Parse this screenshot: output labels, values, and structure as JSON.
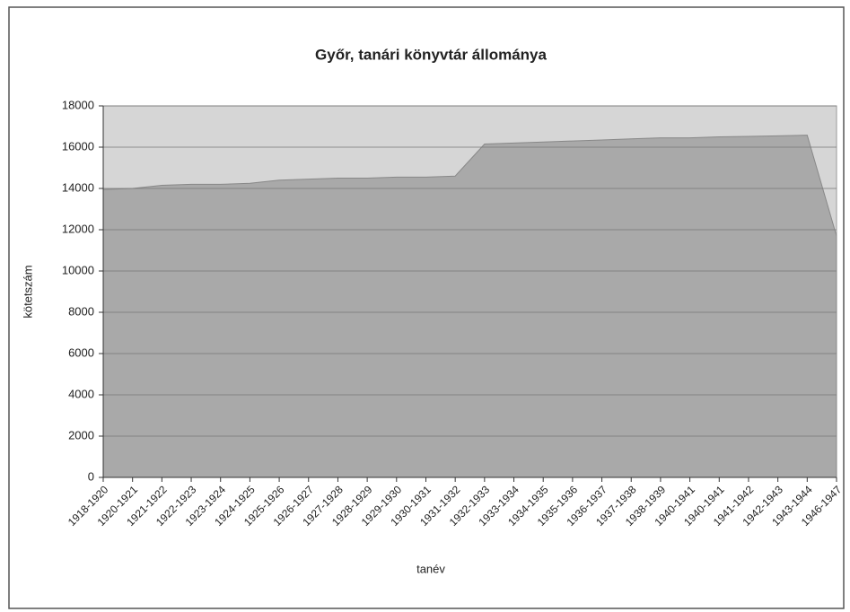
{
  "chart_data": {
    "type": "area",
    "title": "Győr, tanári könyvtár állománya",
    "x_label": "tanév",
    "y_label": "kötetszám",
    "categories": [
      "1918-1920",
      "1920-1921",
      "1921-1922",
      "1922-1923",
      "1923-1924",
      "1924-1925",
      "1925-1926",
      "1926-1927",
      "1927-1928",
      "1928-1929",
      "1929-1930",
      "1930-1931",
      "1931-1932",
      "1932-1933",
      "1933-1934",
      "1934-1935",
      "1935-1936",
      "1936-1937",
      "1937-1938",
      "1938-1939",
      "1940-1941",
      "1940-1941",
      "1941-1942",
      "1942-1943",
      "1943-1944",
      "1946-1947"
    ],
    "values": [
      13950,
      14000,
      14150,
      14200,
      14200,
      14250,
      14400,
      14450,
      14500,
      14500,
      14550,
      14550,
      14600,
      16150,
      16200,
      16250,
      16300,
      16350,
      16400,
      16450,
      16450,
      16500,
      16520,
      16550,
      16580,
      11700
    ],
    "color": "#a9a9a9",
    "background": "#d6d6d6",
    "ylim": [
      0,
      18000
    ],
    "yticks": [
      0,
      2000,
      4000,
      6000,
      8000,
      10000,
      12000,
      14000,
      16000,
      18000
    ],
    "grid": true
  }
}
